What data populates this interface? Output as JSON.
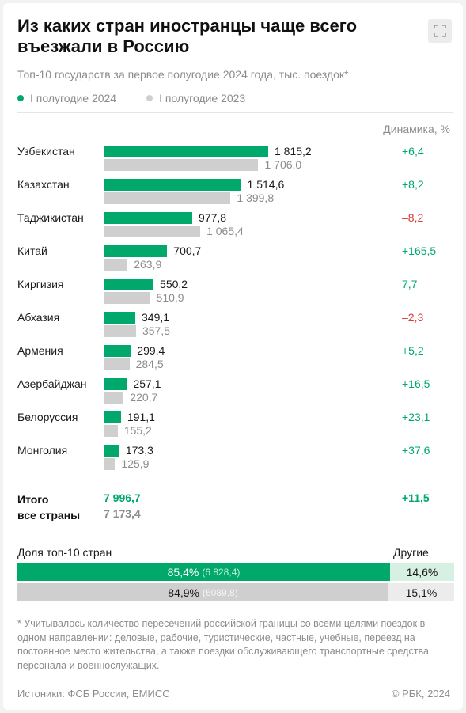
{
  "header": {
    "title": "Из каких стран иностранцы чаще всего въезжали в Россию",
    "subtitle": "Топ-10 государств за первое полугодие 2024 года, тыс. поездок*",
    "expand_icon": "expand-icon"
  },
  "colors": {
    "current": "#00a86b",
    "previous": "#cfcfcf",
    "positive": "#00a86b",
    "negative": "#d93a3a",
    "other_current": "#d6f0e3",
    "other_previous": "#ececec"
  },
  "chart_data": {
    "type": "bar",
    "orientation": "horizontal",
    "legend": [
      "I полугодие 2024",
      "I полугодие 2023"
    ],
    "dynamics_header": "Динамика, %",
    "categories": [
      "Узбекистан",
      "Казахстан",
      "Таджикистан",
      "Китай",
      "Киргизия",
      "Абхазия",
      "Армения",
      "Азербайджан",
      "Белоруссия",
      "Монголия"
    ],
    "series": [
      {
        "name": "I полугодие 2024",
        "values": [
          1815.2,
          1514.6,
          977.8,
          700.7,
          550.2,
          349.1,
          299.4,
          257.1,
          191.1,
          173.3
        ],
        "labels": [
          "1 815,2",
          "1 514,6",
          "977,8",
          "700,7",
          "550,2",
          "349,1",
          "299,4",
          "257,1",
          "191,1",
          "173,3"
        ]
      },
      {
        "name": "I полугодие 2023",
        "values": [
          1706.0,
          1399.8,
          1065.4,
          263.9,
          510.9,
          357.5,
          284.5,
          220.7,
          155.2,
          125.9
        ],
        "labels": [
          "1 706,0",
          "1 399,8",
          "1 065,4",
          "263,9",
          "510,9",
          "357,5",
          "284,5",
          "220,7",
          "155,2",
          "125,9"
        ]
      }
    ],
    "dynamics": [
      "+6,4",
      "+8,2",
      "–8,2",
      "+165,5",
      "7,7",
      "–2,3",
      "+5,2",
      "+16,5",
      "+23,1",
      "+37,6"
    ],
    "dynamics_sign": [
      "pos",
      "pos",
      "neg",
      "pos",
      "pos",
      "neg",
      "pos",
      "pos",
      "pos",
      "pos"
    ],
    "max_value": 1815.2
  },
  "totals": {
    "label_line1": "Итого",
    "label_line2": "все страны",
    "current": "7 996,7",
    "previous": "7 173,4",
    "dynamics": "+11,5"
  },
  "share": {
    "label": "Доля топ-10 стран",
    "others_label": "Другие",
    "rows": [
      {
        "main_fraction": 0.854,
        "main_pct": "85,4%",
        "main_abs": "(6 828,4)",
        "other_pct": "14,6%"
      },
      {
        "main_fraction": 0.849,
        "main_pct": "84,9%",
        "main_abs": "(6089,8)",
        "other_pct": "15,1%"
      }
    ]
  },
  "footnote": "* Учитывалось количество пересечений российской границы со всеми целями поездок в одном направлении: деловые, рабочие, туристические, частные, учебные, переезд на постоянное место жительства, а также поездки обслуживающего транспортные средства персонала и военнослужащих.",
  "footer": {
    "sources": "Истоники: ФСБ России, ЕМИСС",
    "copyright": "© РБК, 2024"
  }
}
